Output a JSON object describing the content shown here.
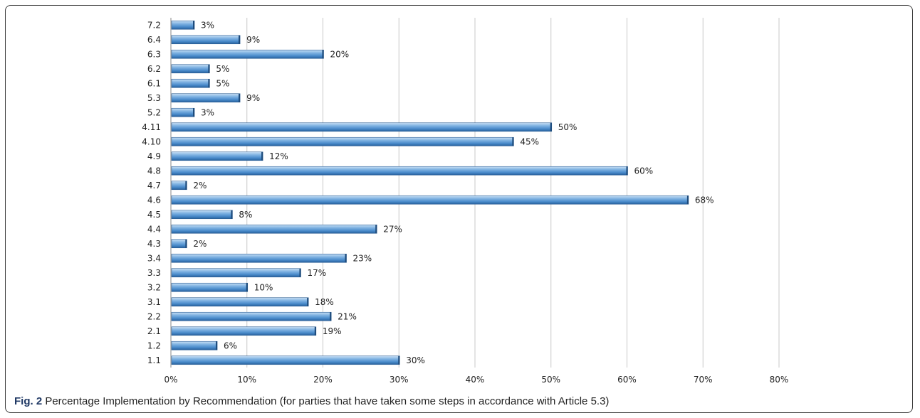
{
  "chart_data": {
    "type": "bar",
    "orientation": "horizontal",
    "categories": [
      "7.2",
      "6.4",
      "6.3",
      "6.2",
      "6.1",
      "5.3",
      "5.2",
      "4.11",
      "4.10",
      "4.9",
      "4.8",
      "4.7",
      "4.6",
      "4.5",
      "4.4",
      "4.3",
      "3.4",
      "3.3",
      "3.2",
      "3.1",
      "2.2",
      "2.1",
      "1.2",
      "1.1"
    ],
    "values": [
      3,
      9,
      20,
      5,
      5,
      9,
      3,
      50,
      45,
      12,
      60,
      2,
      68,
      8,
      27,
      2,
      23,
      17,
      10,
      18,
      21,
      19,
      6,
      30
    ],
    "data_labels": [
      "3%",
      "9%",
      "20%",
      "5%",
      "5%",
      "9%",
      "3%",
      "50%",
      "45%",
      "12%",
      "60%",
      "2%",
      "68%",
      "8%",
      "27%",
      "2%",
      "23%",
      "17%",
      "10%",
      "18%",
      "21%",
      "19%",
      "6%",
      "30%"
    ],
    "xlim": [
      0,
      80
    ],
    "x_ticks": [
      "0%",
      "10%",
      "20%",
      "30%",
      "40%",
      "50%",
      "60%",
      "70%",
      "80%"
    ],
    "grid": "vertical",
    "bar_color": "#5b9bd5",
    "legend": "none"
  },
  "caption": {
    "prefix": "Fig. 2",
    "text": " Percentage Implementation by Recommendation (for parties that have taken some steps in accordance with Article 5.3)"
  }
}
